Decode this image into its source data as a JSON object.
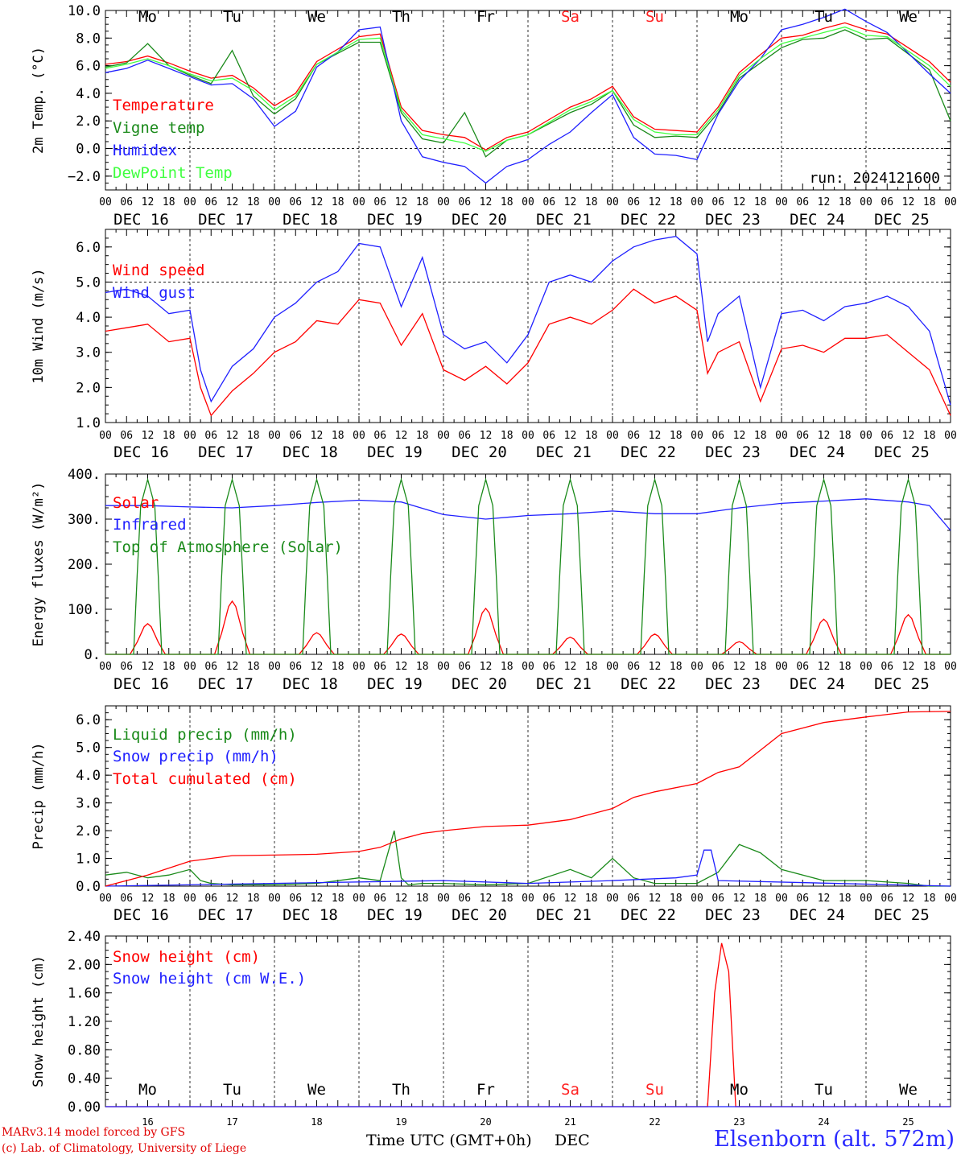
{
  "run_label": "run: 2024121600",
  "date_labels": [
    "DEC 16",
    "DEC 17",
    "DEC 18",
    "DEC 19",
    "DEC 20",
    "DEC 21",
    "DEC 22",
    "DEC 23",
    "DEC 24",
    "DEC 25"
  ],
  "hour_labels": [
    "00",
    "06",
    "12",
    "18"
  ],
  "final_hour_label": "00",
  "weekdays": [
    "Mo",
    "Tu",
    "We",
    "Th",
    "Fr",
    "Sa",
    "Su",
    "Mo",
    "Tu",
    "We"
  ],
  "weekend_color": "#ff2020",
  "weekend_index": [
    5,
    6
  ],
  "bottom_day_numbers": [
    "16",
    "17",
    "18",
    "19",
    "20",
    "21",
    "22",
    "23",
    "24",
    "25"
  ],
  "footer": {
    "model": "MARv3.14 model forced by GFS",
    "credit": "(c) Lab. of Climatology, University of Liege",
    "time_axis": "Time UTC (GMT+0h)",
    "month": "DEC",
    "station": "Elsenborn (alt. 572m)"
  },
  "chart_data": [
    {
      "type": "line",
      "ylabel": "2m Temp. (°C)",
      "ylim": [
        -3.0,
        10.0
      ],
      "yticks": [
        "−2.0",
        "0.0",
        "2.0",
        "4.0",
        "6.0",
        "8.0",
        "10.0"
      ],
      "ytick_values": [
        -2,
        0,
        2,
        4,
        6,
        8,
        10
      ],
      "reference_line": 0,
      "x_unit": "hours since DEC 16 00 UTC",
      "series": [
        {
          "name": "Temperature",
          "color": "#ff0000",
          "x": [
            0,
            6,
            12,
            18,
            24,
            30,
            36,
            42,
            48,
            54,
            60,
            66,
            72,
            78,
            84,
            90,
            96,
            102,
            108,
            114,
            120,
            126,
            132,
            138,
            144,
            150,
            156,
            162,
            168,
            174,
            180,
            186,
            192,
            198,
            204,
            210,
            216,
            222,
            234,
            240
          ],
          "y": [
            6.1,
            6.3,
            6.7,
            6.2,
            5.6,
            5.1,
            5.3,
            4.4,
            3.1,
            4.0,
            6.3,
            7.2,
            8.1,
            8.3,
            3.0,
            1.3,
            1.0,
            0.8,
            -0.1,
            0.8,
            1.2,
            2.1,
            3.0,
            3.6,
            4.5,
            2.3,
            1.4,
            1.3,
            1.2,
            3.0,
            5.5,
            6.8,
            8.0,
            8.2,
            8.7,
            9.1,
            8.6,
            8.3,
            6.3,
            4.8
          ]
        },
        {
          "name": "Vigne temp",
          "color": "#1a8a1a",
          "x": [
            0,
            6,
            12,
            18,
            24,
            30,
            36,
            42,
            48,
            54,
            60,
            66,
            72,
            78,
            84,
            90,
            96,
            102,
            108,
            114,
            120,
            126,
            132,
            138,
            144,
            150,
            156,
            162,
            168,
            174,
            180,
            186,
            192,
            198,
            204,
            210,
            216,
            222,
            234,
            240
          ],
          "y": [
            5.9,
            6.2,
            7.6,
            6.0,
            5.3,
            4.7,
            7.1,
            3.8,
            2.5,
            3.6,
            6.1,
            6.9,
            7.7,
            7.7,
            2.6,
            0.7,
            0.4,
            2.6,
            -0.6,
            0.6,
            1.0,
            1.8,
            2.6,
            3.2,
            4.2,
            1.7,
            0.8,
            0.9,
            0.8,
            2.6,
            5.1,
            6.2,
            7.3,
            7.9,
            8.0,
            8.6,
            7.9,
            8.0,
            5.7,
            2.0
          ]
        },
        {
          "name": "Humidex",
          "color": "#2020ff",
          "x": [
            0,
            6,
            12,
            18,
            24,
            30,
            36,
            42,
            48,
            54,
            60,
            66,
            72,
            78,
            84,
            90,
            96,
            102,
            108,
            114,
            120,
            126,
            132,
            138,
            144,
            150,
            156,
            162,
            168,
            174,
            180,
            186,
            192,
            198,
            204,
            210,
            216,
            222,
            234,
            240
          ],
          "y": [
            5.5,
            5.8,
            6.4,
            5.8,
            5.2,
            4.6,
            4.7,
            3.6,
            1.6,
            2.7,
            5.9,
            7.0,
            8.6,
            8.8,
            2.0,
            -0.6,
            -1.0,
            -1.3,
            -2.5,
            -1.3,
            -0.8,
            0.3,
            1.2,
            2.6,
            3.9,
            0.8,
            -0.4,
            -0.5,
            -0.8,
            2.5,
            4.9,
            6.5,
            8.6,
            9.0,
            9.5,
            10.1,
            9.2,
            8.4,
            5.4,
            4.0
          ]
        },
        {
          "name": "DewPoint Temp",
          "color": "#40ff40",
          "x": [
            0,
            6,
            12,
            18,
            24,
            30,
            36,
            42,
            48,
            54,
            60,
            66,
            72,
            78,
            84,
            90,
            96,
            102,
            108,
            114,
            120,
            126,
            132,
            138,
            144,
            150,
            156,
            162,
            168,
            174,
            180,
            186,
            192,
            198,
            204,
            210,
            216,
            222,
            234,
            240
          ],
          "y": [
            5.8,
            6.1,
            6.5,
            6.0,
            5.4,
            4.9,
            5.1,
            4.2,
            2.8,
            3.8,
            6.1,
            7.0,
            7.9,
            8.0,
            2.8,
            1.0,
            0.7,
            0.4,
            -0.2,
            0.6,
            1.0,
            1.9,
            2.8,
            3.4,
            4.2,
            2.1,
            1.2,
            1.0,
            1.0,
            2.8,
            5.3,
            6.5,
            7.6,
            8.0,
            8.4,
            8.8,
            8.2,
            8.1,
            6.0,
            4.5
          ]
        }
      ]
    },
    {
      "type": "line",
      "ylabel": "10m Wind (m/s)",
      "ylim": [
        1.0,
        6.5
      ],
      "yticks": [
        "1.0",
        "2.0",
        "3.0",
        "4.0",
        "5.0",
        "6.0"
      ],
      "ytick_values": [
        1,
        2,
        3,
        4,
        5,
        6
      ],
      "reference_line": 5,
      "x_unit": "hours since DEC 16 00 UTC",
      "series": [
        {
          "name": "Wind speed",
          "color": "#ff0000",
          "x": [
            0,
            6,
            12,
            18,
            24,
            27,
            30,
            36,
            42,
            48,
            54,
            60,
            66,
            72,
            78,
            84,
            90,
            96,
            102,
            108,
            114,
            120,
            126,
            132,
            138,
            144,
            150,
            156,
            162,
            168,
            171,
            174,
            180,
            186,
            192,
            198,
            204,
            210,
            216,
            222,
            228,
            234,
            240
          ],
          "y": [
            3.6,
            3.7,
            3.8,
            3.3,
            3.4,
            2.0,
            1.2,
            1.9,
            2.4,
            3.0,
            3.3,
            3.9,
            3.8,
            4.5,
            4.4,
            3.2,
            4.1,
            2.5,
            2.2,
            2.6,
            2.1,
            2.7,
            3.8,
            4.0,
            3.8,
            4.2,
            4.8,
            4.4,
            4.6,
            4.2,
            2.4,
            3.0,
            3.3,
            1.6,
            3.1,
            3.2,
            3.0,
            3.4,
            3.4,
            3.5,
            3.0,
            2.5,
            1.2
          ]
        },
        {
          "name": "Wind gust",
          "color": "#2020ff",
          "x": [
            0,
            6,
            12,
            18,
            24,
            27,
            30,
            36,
            42,
            48,
            54,
            60,
            66,
            72,
            78,
            84,
            90,
            96,
            102,
            108,
            114,
            120,
            126,
            132,
            138,
            144,
            150,
            156,
            162,
            168,
            171,
            174,
            180,
            186,
            192,
            198,
            204,
            210,
            216,
            222,
            228,
            234,
            240
          ],
          "y": [
            4.7,
            4.8,
            4.6,
            4.1,
            4.2,
            2.5,
            1.6,
            2.6,
            3.1,
            4.0,
            4.4,
            5.0,
            5.3,
            6.1,
            6.0,
            4.3,
            5.7,
            3.5,
            3.1,
            3.3,
            2.7,
            3.5,
            5.0,
            5.2,
            5.0,
            5.6,
            6.0,
            6.2,
            6.3,
            5.8,
            3.3,
            4.1,
            4.6,
            2.0,
            4.1,
            4.2,
            3.9,
            4.3,
            4.4,
            4.6,
            4.3,
            3.6,
            1.5
          ]
        }
      ]
    },
    {
      "type": "line",
      "ylabel": "Energy fluxes (W/m²)",
      "ylim": [
        0,
        400
      ],
      "yticks": [
        "0.",
        "100.",
        "200.",
        "300.",
        "400."
      ],
      "ytick_values": [
        0,
        100,
        200,
        300,
        400
      ],
      "x_unit": "hours since DEC 16 00 UTC",
      "series": [
        {
          "name": "Solar",
          "color": "#ff0000",
          "daily_peaks": [
            68,
            118,
            48,
            45,
            102,
            38,
            45,
            28,
            78,
            88
          ]
        },
        {
          "name": "Infrared",
          "color": "#2020ff",
          "x": [
            0,
            12,
            24,
            36,
            48,
            60,
            72,
            84,
            96,
            108,
            120,
            132,
            144,
            156,
            168,
            180,
            192,
            204,
            216,
            228,
            234,
            240
          ],
          "y": [
            330,
            330,
            327,
            325,
            330,
            337,
            342,
            338,
            310,
            300,
            308,
            312,
            318,
            312,
            312,
            325,
            335,
            340,
            345,
            338,
            330,
            275
          ]
        },
        {
          "name": "Top of Atmosphere (Solar)",
          "color": "#1a8a1a",
          "daily_peak": 388
        }
      ]
    },
    {
      "type": "line",
      "ylabel": "Precip (mm/h)",
      "ylim": [
        0,
        6.5
      ],
      "yticks": [
        "0.0",
        "1.0",
        "2.0",
        "3.0",
        "4.0",
        "5.0",
        "6.0"
      ],
      "ytick_values": [
        0,
        1,
        2,
        3,
        4,
        5,
        6
      ],
      "x_unit": "hours since DEC 16 00 UTC",
      "series": [
        {
          "name": "Liquid precip (mm/h)",
          "color": "#1a8a1a",
          "x": [
            0,
            6,
            12,
            18,
            24,
            27,
            30,
            36,
            48,
            60,
            72,
            78,
            82,
            84,
            86,
            90,
            96,
            108,
            120,
            132,
            138,
            144,
            150,
            156,
            168,
            174,
            180,
            186,
            192,
            204,
            216,
            228,
            234,
            240
          ],
          "y": [
            0.4,
            0.5,
            0.3,
            0.4,
            0.6,
            0.2,
            0.1,
            0.05,
            0.05,
            0.1,
            0.3,
            0.2,
            2.0,
            0.3,
            0.05,
            0.1,
            0.1,
            0.05,
            0.1,
            0.6,
            0.3,
            1.0,
            0.3,
            0.1,
            0.1,
            0.5,
            1.5,
            1.2,
            0.6,
            0.2,
            0.2,
            0.1,
            0.0,
            0.0
          ]
        },
        {
          "name": "Snow precip (mm/h)",
          "color": "#2020ff",
          "x": [
            0,
            96,
            120,
            144,
            162,
            168,
            170,
            172,
            174,
            240
          ],
          "y": [
            0,
            0.2,
            0.1,
            0.2,
            0.3,
            0.4,
            1.3,
            1.3,
            0.2,
            0
          ]
        },
        {
          "name": "Total cumulated (cm)",
          "color": "#ff0000",
          "x": [
            0,
            12,
            24,
            36,
            48,
            60,
            72,
            78,
            84,
            90,
            96,
            108,
            120,
            132,
            144,
            150,
            156,
            168,
            174,
            180,
            186,
            192,
            204,
            216,
            228,
            240
          ],
          "y": [
            0,
            0.4,
            0.9,
            1.1,
            1.12,
            1.15,
            1.25,
            1.4,
            1.7,
            1.9,
            2.0,
            2.15,
            2.2,
            2.4,
            2.8,
            3.2,
            3.4,
            3.7,
            4.1,
            4.3,
            4.9,
            5.5,
            5.9,
            6.1,
            6.28,
            6.3
          ]
        }
      ]
    },
    {
      "type": "line",
      "ylabel": "Snow height (cm)",
      "ylim": [
        0,
        2.4
      ],
      "yticks": [
        "0.00",
        "0.40",
        "0.80",
        "1.20",
        "1.60",
        "2.00",
        "2.40"
      ],
      "ytick_values": [
        0,
        0.4,
        0.8,
        1.2,
        1.6,
        2.0,
        2.4
      ],
      "x_unit": "hours since DEC 16 00 UTC",
      "series": [
        {
          "name": "Snow height (cm)",
          "color": "#ff0000",
          "x": [
            0,
            171,
            173,
            175,
            177,
            179,
            240
          ],
          "y": [
            0,
            0,
            1.6,
            2.3,
            1.9,
            0,
            0
          ]
        },
        {
          "name": "Snow height (cm W.E.)",
          "color": "#2020ff",
          "x": [
            0,
            240
          ],
          "y": [
            0,
            0
          ]
        }
      ]
    }
  ]
}
